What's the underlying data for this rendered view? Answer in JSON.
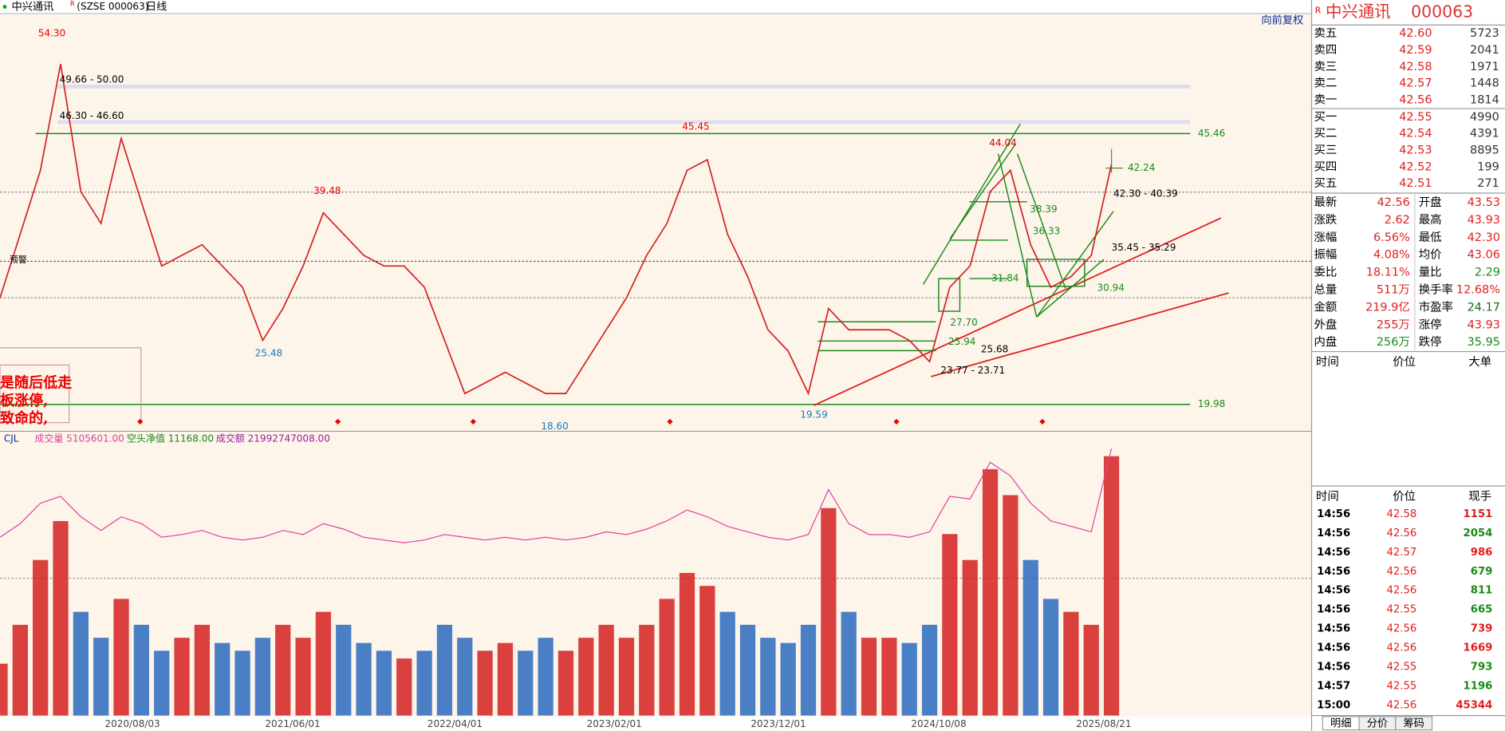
{
  "header": {
    "title": "中兴通讯",
    "flag": "R",
    "code": "(SZSE 000063)",
    "period": "日线",
    "adjust": "向前复权"
  },
  "chart_data": {
    "type": "candlestick",
    "ylim": [
      17.54,
      56.75
    ],
    "color": "#d42020",
    "closes": [
      30,
      36,
      42,
      52,
      40,
      37,
      45,
      39,
      33,
      34,
      35,
      33,
      31,
      26,
      29,
      33,
      38,
      36,
      34,
      33,
      33,
      31,
      26,
      21,
      22,
      23,
      22,
      21,
      21,
      24,
      27,
      30,
      34,
      37,
      42,
      43,
      36,
      32,
      27,
      25,
      21,
      29,
      27,
      27,
      27,
      26,
      24,
      31,
      33,
      40,
      42,
      35,
      31,
      32,
      34,
      42.56
    ],
    "volume": [
      20,
      35,
      60,
      75,
      40,
      30,
      45,
      35,
      25,
      30,
      35,
      28,
      25,
      30,
      35,
      30,
      40,
      35,
      28,
      25,
      22,
      25,
      35,
      30,
      25,
      28,
      25,
      30,
      25,
      30,
      35,
      30,
      35,
      45,
      55,
      50,
      40,
      35,
      30,
      28,
      35,
      80,
      40,
      30,
      30,
      28,
      35,
      70,
      60,
      95,
      85,
      60,
      45,
      40,
      35,
      100
    ],
    "turnover": [
      30,
      40,
      55,
      60,
      45,
      35,
      45,
      40,
      30,
      32,
      35,
      30,
      28,
      30,
      35,
      32,
      40,
      36,
      30,
      28,
      26,
      28,
      32,
      30,
      28,
      30,
      28,
      30,
      28,
      30,
      34,
      32,
      36,
      42,
      50,
      45,
      38,
      34,
      30,
      28,
      32,
      65,
      40,
      32,
      32,
      30,
      34,
      60,
      58,
      85,
      75,
      55,
      42,
      38,
      34,
      95
    ],
    "price_labels": [
      "54.30",
      "49.66 - 50.00",
      "46.30 - 46.60",
      "45.45",
      "45.46",
      "39.48",
      "44.04",
      "42.24",
      "42.30 - 40.39",
      "38.39",
      "36.33",
      "35.45 - 35.29",
      "31.84",
      "30.94",
      "27.70",
      "25.94",
      "25.68",
      "23.77 - 23.71",
      "25.48",
      "18.60",
      "19.59",
      "19.98"
    ],
    "notes": [
      "是随后低走",
      "板涨停,",
      "致命的,",
      "预警"
    ],
    "legend": {
      "name": "CJL",
      "items": [
        "成交量 5105601.00",
        "空头净值 11168.00",
        "成交额 21992747008.00"
      ]
    },
    "dates": [
      "2020/08/03",
      "2021/06/01",
      "2022/04/01",
      "2023/02/01",
      "2023/12/01",
      "2024/10/08",
      "2025/08/21"
    ]
  },
  "quote": {
    "name": "中兴通讯",
    "code": "000063",
    "book": [
      [
        "卖五",
        "42.60",
        "5723"
      ],
      [
        "卖四",
        "42.59",
        "2041"
      ],
      [
        "卖三",
        "42.58",
        "1971"
      ],
      [
        "卖二",
        "42.57",
        "1448"
      ],
      [
        "卖一",
        "42.56",
        "1814"
      ],
      [
        "买一",
        "42.55",
        "4990"
      ],
      [
        "买二",
        "42.54",
        "4391"
      ],
      [
        "买三",
        "42.53",
        "8895"
      ],
      [
        "买四",
        "42.52",
        "199"
      ],
      [
        "买五",
        "42.51",
        "271"
      ]
    ],
    "stats": [
      [
        "最新",
        "42.56",
        "开盘",
        "43.53"
      ],
      [
        "涨跌",
        "2.62",
        "最高",
        "43.93"
      ],
      [
        "涨幅",
        "6.56%",
        "最低",
        "42.30"
      ],
      [
        "振幅",
        "4.08%",
        "均价",
        "43.06"
      ],
      [
        "委比",
        "18.11%",
        "量比",
        "2.29"
      ],
      [
        "总量",
        "511万",
        "换手率",
        "12.68%"
      ],
      [
        "金额",
        "219.9亿",
        "市盈率",
        "24.17"
      ],
      [
        "外盘",
        "255万",
        "涨停",
        "43.93"
      ],
      [
        "内盘",
        "256万",
        "跌停",
        "35.95"
      ]
    ],
    "big_header": [
      "时间",
      "价位",
      "大单"
    ],
    "trades_header": [
      "时间",
      "价位",
      "现手"
    ],
    "trades": [
      [
        "14:56",
        "42.58",
        "1151"
      ],
      [
        "14:56",
        "42.56",
        "2054"
      ],
      [
        "14:56",
        "42.57",
        "986"
      ],
      [
        "14:56",
        "42.56",
        "679"
      ],
      [
        "14:56",
        "42.56",
        "811"
      ],
      [
        "14:56",
        "42.55",
        "665"
      ],
      [
        "14:56",
        "42.56",
        "739"
      ],
      [
        "14:56",
        "42.56",
        "1669"
      ],
      [
        "14:56",
        "42.55",
        "793"
      ],
      [
        "14:57",
        "42.55",
        "1196"
      ],
      [
        "15:00",
        "42.56",
        "45344"
      ]
    ],
    "tabs": [
      "明细",
      "分价",
      "筹码"
    ]
  }
}
